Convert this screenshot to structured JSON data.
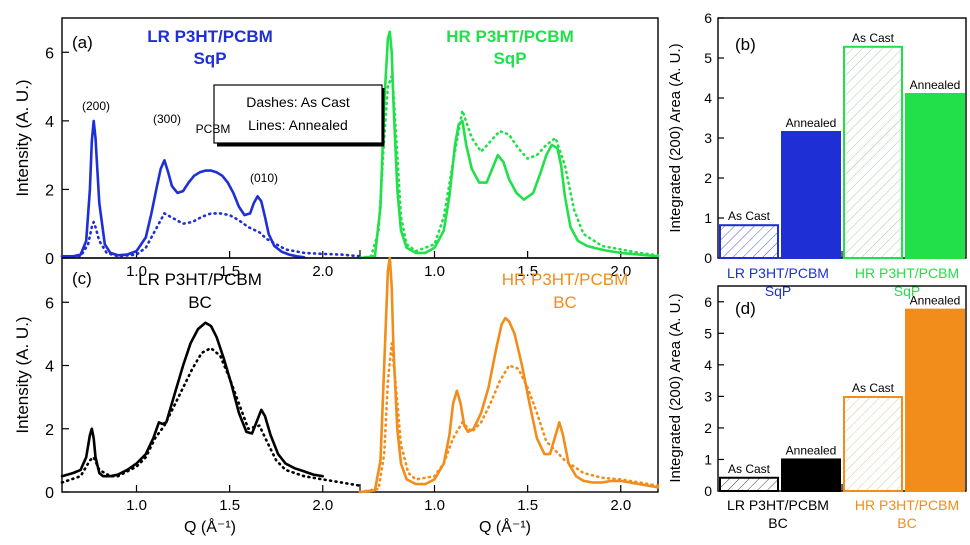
{
  "colors": {
    "lr_sqp": "#1f2fd6",
    "hr_sqp": "#22e04a",
    "lr_bc": "#000000",
    "hr_bc": "#f28c1a",
    "axis": "#000000"
  },
  "chart_data": [
    {
      "id": "a",
      "type": "line",
      "panel_label": "(a)",
      "ylabel": "Intensity (A. U.)",
      "xlabel": "",
      "ylim": [
        0,
        7
      ],
      "yticks": [
        "0",
        "2",
        "4",
        "6"
      ],
      "xlim": [
        0.6,
        2.2
      ],
      "xticks": [
        "1.0",
        "1.5",
        "2.0"
      ],
      "legend_box": {
        "line1": "Dashes: As Cast",
        "line2": "Lines: Annealed"
      },
      "annotations": [
        "(200)",
        "(300)",
        "PCBM",
        "(010)"
      ],
      "groups": [
        {
          "title_line1": "LR P3HT/PCBM",
          "title_line2": "SqP",
          "color_key": "lr_sqp",
          "series": [
            {
              "style": "solid",
              "name": "Annealed",
              "x": [
                0.6,
                0.66,
                0.7,
                0.73,
                0.75,
                0.76,
                0.77,
                0.78,
                0.8,
                0.83,
                0.86,
                0.9,
                0.95,
                1.0,
                1.05,
                1.08,
                1.11,
                1.13,
                1.15,
                1.17,
                1.19,
                1.22,
                1.25,
                1.28,
                1.31,
                1.34,
                1.37,
                1.4,
                1.43,
                1.46,
                1.49,
                1.52,
                1.55,
                1.58,
                1.61,
                1.63,
                1.65,
                1.67,
                1.69,
                1.71,
                1.74,
                1.78,
                1.82,
                1.86,
                1.9
              ],
              "y": [
                0.05,
                0.05,
                0.1,
                0.5,
                2.0,
                3.4,
                4.0,
                3.5,
                1.6,
                0.4,
                0.15,
                0.08,
                0.1,
                0.2,
                0.6,
                1.3,
                2.1,
                2.6,
                2.85,
                2.5,
                2.1,
                1.9,
                1.95,
                2.2,
                2.4,
                2.5,
                2.55,
                2.55,
                2.5,
                2.4,
                2.2,
                1.9,
                1.5,
                1.25,
                1.3,
                1.6,
                1.8,
                1.65,
                1.2,
                0.7,
                0.35,
                0.18,
                0.1,
                0.05,
                0.02
              ]
            },
            {
              "style": "dotted",
              "name": "As Cast",
              "x": [
                0.6,
                0.7,
                0.74,
                0.76,
                0.77,
                0.78,
                0.8,
                0.84,
                0.9,
                1.0,
                1.05,
                1.1,
                1.15,
                1.2,
                1.25,
                1.3,
                1.35,
                1.4,
                1.45,
                1.5,
                1.55,
                1.6,
                1.66,
                1.7,
                1.8,
                1.9,
                2.0,
                2.1,
                2.2
              ],
              "y": [
                0.05,
                0.05,
                0.4,
                0.9,
                1.05,
                0.9,
                0.5,
                0.15,
                0.05,
                0.1,
                0.3,
                0.8,
                1.3,
                1.15,
                1.0,
                1.05,
                1.2,
                1.3,
                1.3,
                1.25,
                1.1,
                0.9,
                0.75,
                0.55,
                0.25,
                0.15,
                0.12,
                0.1,
                0.05
              ]
            }
          ]
        },
        {
          "title_line1": "HR P3HT/PCBM",
          "title_line2": "SqP",
          "color_key": "hr_sqp",
          "series": [
            {
              "style": "solid",
              "name": "Annealed",
              "x": [
                0.6,
                0.68,
                0.71,
                0.73,
                0.75,
                0.76,
                0.77,
                0.78,
                0.8,
                0.82,
                0.85,
                0.9,
                0.95,
                1.0,
                1.05,
                1.08,
                1.11,
                1.13,
                1.15,
                1.17,
                1.2,
                1.24,
                1.28,
                1.31,
                1.34,
                1.37,
                1.4,
                1.44,
                1.48,
                1.53,
                1.57,
                1.6,
                1.63,
                1.66,
                1.68,
                1.7,
                1.73,
                1.77,
                1.82,
                1.87,
                1.92,
                2.0,
                2.1,
                2.2
              ],
              "y": [
                0.0,
                0.05,
                1.5,
                4.5,
                6.4,
                6.6,
                6.0,
                4.5,
                2.0,
                0.8,
                0.3,
                0.15,
                0.15,
                0.3,
                0.8,
                1.8,
                3.3,
                3.9,
                4.0,
                3.3,
                2.6,
                2.2,
                2.2,
                2.6,
                3.0,
                2.8,
                2.3,
                1.9,
                1.7,
                1.9,
                2.5,
                3.0,
                3.3,
                3.2,
                2.7,
                1.8,
                0.9,
                0.5,
                0.35,
                0.28,
                0.22,
                0.15,
                0.1,
                0.05
              ]
            },
            {
              "style": "dotted",
              "name": "As Cast",
              "x": [
                0.6,
                0.66,
                0.7,
                0.73,
                0.75,
                0.77,
                0.78,
                0.8,
                0.82,
                0.85,
                0.9,
                1.0,
                1.05,
                1.1,
                1.15,
                1.2,
                1.25,
                1.3,
                1.35,
                1.4,
                1.45,
                1.5,
                1.55,
                1.6,
                1.65,
                1.7,
                1.75,
                1.8,
                1.9,
                2.0,
                2.1,
                2.2
              ],
              "y": [
                0.0,
                0.05,
                0.8,
                3.5,
                5.0,
                5.3,
                4.8,
                3.0,
                1.2,
                0.4,
                0.2,
                0.4,
                1.2,
                2.8,
                4.3,
                3.5,
                3.1,
                3.4,
                3.7,
                3.6,
                3.2,
                2.9,
                3.0,
                3.3,
                3.5,
                2.7,
                1.4,
                0.7,
                0.35,
                0.25,
                0.15,
                0.08
              ]
            }
          ]
        }
      ]
    },
    {
      "id": "c",
      "type": "line",
      "panel_label": "(c)",
      "ylabel": "Intensity (A. U.)",
      "xlabel": "Q (Å⁻¹)",
      "ylim": [
        0,
        7.4
      ],
      "yticks": [
        "0",
        "2",
        "4",
        "6"
      ],
      "xlim": [
        0.6,
        2.2
      ],
      "xticks": [
        "1.0",
        "1.5",
        "2.0"
      ],
      "groups": [
        {
          "title_line1": "LR P3HT/PCBM",
          "title_line2": "BC",
          "color_key": "lr_bc",
          "series": [
            {
              "style": "solid",
              "name": "Annealed",
              "x": [
                0.6,
                0.66,
                0.7,
                0.73,
                0.75,
                0.76,
                0.77,
                0.78,
                0.8,
                0.82,
                0.86,
                0.9,
                0.95,
                1.0,
                1.05,
                1.09,
                1.12,
                1.14,
                1.16,
                1.18,
                1.21,
                1.25,
                1.29,
                1.33,
                1.37,
                1.4,
                1.43,
                1.47,
                1.51,
                1.55,
                1.59,
                1.62,
                1.65,
                1.67,
                1.69,
                1.72,
                1.76,
                1.8,
                1.85,
                1.9,
                1.95,
                2.0
              ],
              "y": [
                0.5,
                0.6,
                0.7,
                1.1,
                1.8,
                2.0,
                1.7,
                1.1,
                0.6,
                0.5,
                0.5,
                0.55,
                0.7,
                0.9,
                1.2,
                1.7,
                2.2,
                2.15,
                2.2,
                2.6,
                3.2,
                4.0,
                4.7,
                5.15,
                5.35,
                5.25,
                4.9,
                4.2,
                3.4,
                2.5,
                1.9,
                1.85,
                2.3,
                2.6,
                2.4,
                1.8,
                1.2,
                0.9,
                0.75,
                0.65,
                0.55,
                0.5
              ]
            },
            {
              "style": "dotted",
              "name": "As Cast",
              "x": [
                0.6,
                0.7,
                0.75,
                0.77,
                0.8,
                0.86,
                0.9,
                1.0,
                1.05,
                1.1,
                1.15,
                1.2,
                1.25,
                1.3,
                1.35,
                1.4,
                1.45,
                1.5,
                1.55,
                1.6,
                1.66,
                1.7,
                1.75,
                1.8,
                1.9,
                2.0,
                2.1,
                2.2
              ],
              "y": [
                0.3,
                0.5,
                1.0,
                1.1,
                0.7,
                0.5,
                0.5,
                0.8,
                1.1,
                1.7,
                2.1,
                2.7,
                3.3,
                3.9,
                4.4,
                4.55,
                4.3,
                3.6,
                2.8,
                2.0,
                2.1,
                1.6,
                1.0,
                0.7,
                0.5,
                0.4,
                0.3,
                0.2
              ]
            }
          ]
        },
        {
          "title_line1": "HR P3HT/PCBM",
          "title_line2": "BC",
          "color_key": "hr_bc",
          "series": [
            {
              "style": "solid",
              "name": "Annealed",
              "x": [
                0.6,
                0.68,
                0.71,
                0.73,
                0.75,
                0.76,
                0.77,
                0.78,
                0.8,
                0.82,
                0.85,
                0.9,
                0.95,
                1.0,
                1.05,
                1.08,
                1.1,
                1.12,
                1.14,
                1.16,
                1.18,
                1.21,
                1.25,
                1.29,
                1.33,
                1.36,
                1.38,
                1.4,
                1.43,
                1.47,
                1.51,
                1.55,
                1.59,
                1.62,
                1.65,
                1.67,
                1.69,
                1.72,
                1.76,
                1.8,
                1.85,
                1.9,
                1.95,
                2.0,
                2.1,
                2.2
              ],
              "y": [
                0.0,
                0.05,
                1.0,
                4.0,
                7.0,
                7.4,
                6.5,
                4.5,
                2.0,
                0.9,
                0.4,
                0.25,
                0.25,
                0.4,
                0.9,
                1.8,
                2.8,
                3.2,
                2.8,
                2.1,
                1.9,
                2.0,
                2.5,
                3.3,
                4.5,
                5.3,
                5.5,
                5.4,
                5.0,
                4.0,
                2.8,
                1.7,
                1.2,
                1.2,
                1.8,
                2.2,
                1.8,
                0.9,
                0.5,
                0.35,
                0.3,
                0.3,
                0.35,
                0.35,
                0.25,
                0.15
              ]
            },
            {
              "style": "dotted",
              "name": "As Cast",
              "x": [
                0.6,
                0.7,
                0.73,
                0.75,
                0.77,
                0.79,
                0.82,
                0.86,
                0.9,
                1.0,
                1.05,
                1.1,
                1.15,
                1.2,
                1.25,
                1.3,
                1.35,
                1.4,
                1.45,
                1.5,
                1.55,
                1.6,
                1.65,
                1.7,
                1.75,
                1.8,
                1.9,
                2.0,
                2.1,
                2.2
              ],
              "y": [
                0.0,
                0.1,
                1.2,
                3.5,
                4.7,
                3.5,
                1.5,
                0.6,
                0.4,
                0.5,
                0.9,
                1.7,
                2.2,
                1.9,
                2.2,
                2.8,
                3.5,
                4.0,
                3.9,
                3.3,
                2.5,
                1.6,
                1.3,
                1.0,
                0.8,
                0.6,
                0.45,
                0.4,
                0.3,
                0.2
              ]
            }
          ]
        }
      ]
    },
    {
      "id": "b",
      "type": "bar",
      "panel_label": "(b)",
      "ylabel": "Integrated (200) Area (A. U.)",
      "ylim": [
        0,
        6
      ],
      "yticks": [
        "0",
        "1",
        "2",
        "3",
        "4",
        "5",
        "6"
      ],
      "bars": [
        {
          "label": "As Cast",
          "value": 0.82,
          "color_key": "lr_sqp",
          "hatched": true
        },
        {
          "label": "Annealed",
          "value": 3.15,
          "color_key": "lr_sqp",
          "hatched": false
        },
        {
          "label": "As Cast",
          "value": 5.28,
          "color_key": "hr_sqp",
          "hatched": true
        },
        {
          "label": "Annealed",
          "value": 4.1,
          "color_key": "hr_sqp",
          "hatched": false
        }
      ],
      "groups": [
        {
          "line1": "LR P3HT/PCBM",
          "line2": "SqP",
          "color_key": "lr_sqp"
        },
        {
          "line1": "HR P3HT/PCBM",
          "line2": "SqP",
          "color_key": "hr_sqp"
        }
      ]
    },
    {
      "id": "d",
      "type": "bar",
      "panel_label": "(d)",
      "ylabel": "Integrated (200) Area (A. U.)",
      "ylim": [
        0,
        6.5
      ],
      "yticks": [
        "0",
        "1",
        "2",
        "3",
        "4",
        "5",
        "6"
      ],
      "bars": [
        {
          "label": "As Cast",
          "value": 0.42,
          "color_key": "lr_bc",
          "hatched": true
        },
        {
          "label": "Annealed",
          "value": 1.0,
          "color_key": "lr_bc",
          "hatched": false
        },
        {
          "label": "As Cast",
          "value": 2.98,
          "color_key": "hr_bc",
          "hatched": true
        },
        {
          "label": "Annealed",
          "value": 5.75,
          "color_key": "hr_bc",
          "hatched": false
        }
      ],
      "groups": [
        {
          "line1": "LR P3HT/PCBM",
          "line2": "BC",
          "color_key": "lr_bc"
        },
        {
          "line1": "HR P3HT/PCBM",
          "line2": "BC",
          "color_key": "hr_bc"
        }
      ]
    }
  ]
}
